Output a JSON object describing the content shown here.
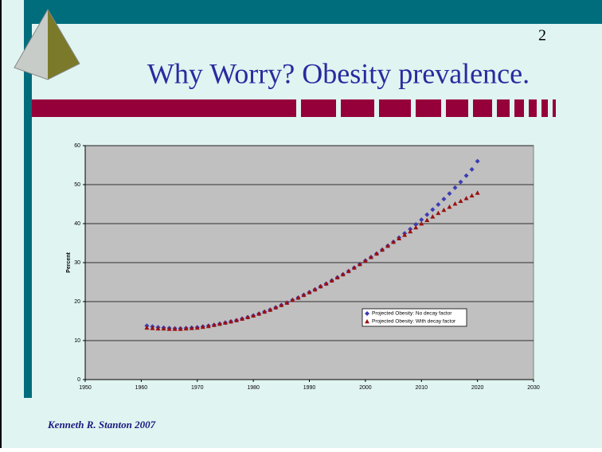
{
  "slide": {
    "number": 2,
    "title": "Why Worry? Obesity prevalence.",
    "footer": "Kenneth R. Stanton 2007"
  },
  "chart_data": {
    "type": "scatter",
    "ylabel": "Percent",
    "x": [
      1961,
      1962,
      1963,
      1964,
      1965,
      1966,
      1967,
      1968,
      1969,
      1970,
      1971,
      1972,
      1973,
      1974,
      1975,
      1976,
      1977,
      1978,
      1979,
      1980,
      1981,
      1982,
      1983,
      1984,
      1985,
      1986,
      1987,
      1988,
      1989,
      1990,
      1991,
      1992,
      1993,
      1994,
      1995,
      1996,
      1997,
      1998,
      1999,
      2000,
      2001,
      2002,
      2003,
      2004,
      2005,
      2006,
      2007,
      2008,
      2009,
      2010,
      2011,
      2012,
      2013,
      2014,
      2015,
      2016,
      2017,
      2018,
      2019,
      2020
    ],
    "series": [
      {
        "name": "Projected Obesity: No decay factor",
        "color": "#3c3cb4",
        "marker": "diamond",
        "values": [
          13.8,
          13.6,
          13.4,
          13.3,
          13.2,
          13.1,
          13.1,
          13.2,
          13.3,
          13.4,
          13.6,
          13.8,
          14.0,
          14.3,
          14.6,
          14.9,
          15.2,
          15.6,
          16.0,
          16.4,
          16.9,
          17.4,
          17.9,
          18.5,
          19.1,
          19.7,
          20.4,
          21.0,
          21.7,
          22.4,
          23.1,
          23.9,
          24.6,
          25.4,
          26.2,
          27.0,
          27.8,
          28.7,
          29.6,
          30.5,
          31.4,
          32.3,
          33.3,
          34.3,
          35.3,
          36.4,
          37.5,
          38.6,
          39.8,
          41.0,
          42.3,
          43.6,
          44.9,
          46.3,
          47.7,
          49.2,
          50.7,
          52.3,
          53.9,
          56.0
        ]
      },
      {
        "name": "Projected Obesity: With decay factor",
        "color": "#9a1010",
        "marker": "triangle",
        "values": [
          13.3,
          13.2,
          13.1,
          13.1,
          13.0,
          13.0,
          13.0,
          13.1,
          13.2,
          13.3,
          13.5,
          13.7,
          14.0,
          14.3,
          14.6,
          14.9,
          15.2,
          15.6,
          16.0,
          16.4,
          16.9,
          17.4,
          17.9,
          18.5,
          19.1,
          19.7,
          20.4,
          21.0,
          21.7,
          22.4,
          23.1,
          23.9,
          24.6,
          25.4,
          26.2,
          27.0,
          27.8,
          28.7,
          29.6,
          30.5,
          31.4,
          32.3,
          33.3,
          34.3,
          35.3,
          36.2,
          37.1,
          38.0,
          39.0,
          40.0,
          40.9,
          41.8,
          42.7,
          43.5,
          44.3,
          45.1,
          45.8,
          46.5,
          47.2,
          47.9
        ]
      }
    ],
    "xlim": [
      1950,
      2030
    ],
    "xticks": [
      1950,
      1960,
      1970,
      1980,
      1990,
      2000,
      2010,
      2020,
      2030
    ],
    "ylim": [
      0,
      60
    ],
    "yticks": [
      0,
      10,
      20,
      30,
      40,
      50,
      60
    ],
    "grid": true,
    "legend": "center-right"
  }
}
